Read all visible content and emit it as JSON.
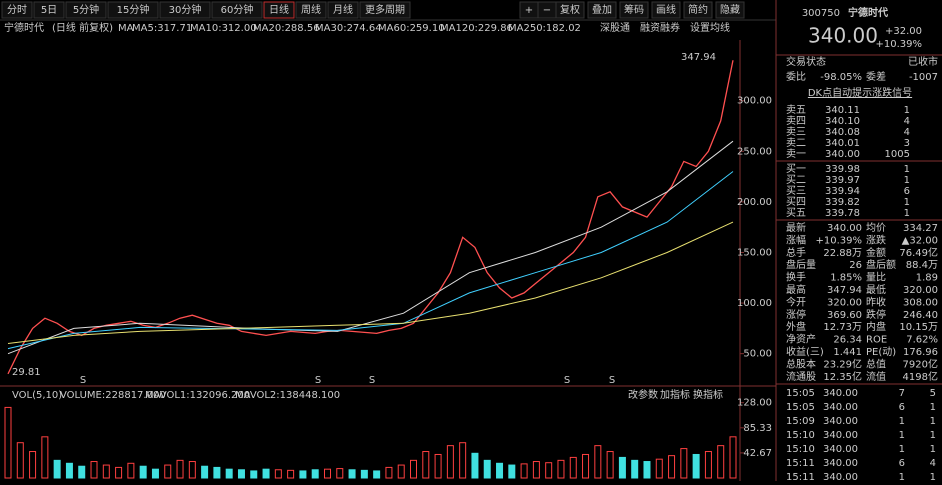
{
  "toolbar": {
    "tabs": [
      "分时",
      "5日",
      "5分钟",
      "15分钟",
      "30分钟",
      "60分钟",
      "日线",
      "周线",
      "月线",
      "更多周期"
    ],
    "active_tab": 6,
    "buttons": [
      "+",
      "−",
      "复权",
      "叠加",
      "筹码",
      "画线",
      "简约",
      "隐藏"
    ]
  },
  "header": {
    "name": "宁德时代",
    "mode": "(日线 前复权)",
    "ma_label": "MA",
    "ma_values": [
      {
        "text": "MA5:317.71",
        "color": "#ffffff"
      },
      {
        "text": "MA10:312.00",
        "color": "#ffff00"
      },
      {
        "text": "MA20:288.56",
        "color": "#ff40ff"
      },
      {
        "text": "MA30:274.64",
        "color": "#40ff40"
      },
      {
        "text": "MA60:259.10",
        "color": "#dddddd"
      },
      {
        "text": "MA120:229.86",
        "color": "#40d0ff"
      },
      {
        "text": "MA250:182.02",
        "color": "#e8e070"
      }
    ],
    "tools": [
      "深股通",
      "融资融券",
      "设置均线"
    ]
  },
  "chart_data": {
    "type": "line",
    "ylim": [
      21,
      360
    ],
    "yticks": [
      {
        "value": 300,
        "label": "300.00"
      },
      {
        "value": 250,
        "label": "250.00"
      },
      {
        "value": 200,
        "label": "200.00"
      },
      {
        "value": 150,
        "label": "150.00"
      },
      {
        "value": 100,
        "label": "100.00"
      },
      {
        "value": 50,
        "label": "50.00"
      }
    ],
    "high_label": "347.94",
    "low_label": "29.81",
    "signal_label": "S",
    "series": [
      {
        "color": "#ff5050",
        "values": [
          30,
          55,
          75,
          85,
          80,
          72,
          68,
          75,
          78,
          80,
          82,
          78,
          76,
          80,
          85,
          88,
          84,
          80,
          78,
          72,
          70,
          68,
          70,
          72,
          71,
          70,
          72,
          73,
          72,
          71,
          70,
          73,
          75,
          80,
          95,
          110,
          130,
          165,
          155,
          130,
          115,
          105,
          110,
          120,
          130,
          140,
          150,
          165,
          205,
          210,
          195,
          190,
          185,
          200,
          215,
          240,
          235,
          250,
          280,
          340
        ]
      },
      {
        "color": "#dddddd",
        "values": [
          50,
          75,
          80,
          77,
          74,
          72,
          90,
          130,
          150,
          175,
          210,
          260
        ]
      },
      {
        "color": "#40d0ff",
        "values": [
          55,
          70,
          76,
          75,
          74,
          73,
          80,
          110,
          130,
          150,
          180,
          230
        ]
      },
      {
        "color": "#e8e070",
        "values": [
          60,
          68,
          72,
          74,
          76,
          78,
          80,
          90,
          105,
          125,
          150,
          180
        ]
      }
    ]
  },
  "volume": {
    "title": "VOL(5,10)",
    "volume": "VOLUME:228817.000",
    "mavol1": "MAVOL1:132096.200",
    "mavol2": "MAVOL2:138448.100",
    "buttons": [
      "改参数",
      "加指标",
      "换指标"
    ],
    "ylim": [
      0,
      136
    ],
    "yticks": [
      {
        "value": 128,
        "label": "128.00"
      },
      {
        "value": 85.33,
        "label": "85.33"
      },
      {
        "value": 42.67,
        "label": "42.67"
      }
    ],
    "values": [
      120,
      60,
      45,
      70,
      30,
      25,
      20,
      28,
      22,
      18,
      25,
      20,
      15,
      22,
      30,
      28,
      20,
      18,
      15,
      14,
      12,
      15,
      14,
      13,
      12,
      14,
      15,
      16,
      14,
      13,
      12,
      18,
      22,
      30,
      45,
      40,
      55,
      60,
      42,
      30,
      25,
      22,
      24,
      28,
      26,
      30,
      35,
      40,
      55,
      45,
      35,
      30,
      28,
      32,
      38,
      50,
      40,
      45,
      55,
      70
    ]
  },
  "quote": {
    "code": "300750",
    "name": "宁德时代",
    "price": "340.00",
    "change": "+32.00",
    "change_pct": "+10.39%",
    "status_label": "交易状态",
    "status": "已收市",
    "ratio_label": "委比",
    "ratio": "-98.05%",
    "diff_label": "委差",
    "diff": "-1007",
    "signal": "DK点自动提示涨跌信号",
    "sells": [
      [
        "卖五",
        "340.11",
        "1"
      ],
      [
        "卖四",
        "340.10",
        "4"
      ],
      [
        "卖三",
        "340.08",
        "4"
      ],
      [
        "卖二",
        "340.01",
        "3"
      ],
      [
        "卖一",
        "340.00",
        "1005"
      ]
    ],
    "buys": [
      [
        "买一",
        "339.98",
        "1"
      ],
      [
        "买二",
        "339.97",
        "1"
      ],
      [
        "买三",
        "339.94",
        "6"
      ],
      [
        "买四",
        "339.82",
        "1"
      ],
      [
        "买五",
        "339.78",
        "1"
      ]
    ],
    "stats": [
      [
        "最新",
        "340.00",
        "均价",
        "334.27"
      ],
      [
        "涨幅",
        "+10.39%",
        "涨跌",
        "▲32.00"
      ],
      [
        "总手",
        "22.88万",
        "金额",
        "76.49亿"
      ],
      [
        "盘后量",
        "26",
        "盘后额",
        "88.4万"
      ],
      [
        "换手",
        "1.85%",
        "量比",
        "1.89"
      ],
      [
        "最高",
        "347.94",
        "最低",
        "320.00"
      ],
      [
        "今开",
        "320.00",
        "昨收",
        "308.00"
      ],
      [
        "涨停",
        "369.60",
        "跌停",
        "246.40"
      ],
      [
        "外盘",
        "12.73万",
        "内盘",
        "10.15万"
      ],
      [
        "净资产",
        "26.34",
        "ROE",
        "7.62%"
      ],
      [
        "收益(三)",
        "1.441",
        "PE(动)",
        "176.96"
      ],
      [
        "总股本",
        "23.29亿",
        "总值",
        "7920亿"
      ],
      [
        "流通股",
        "12.35亿",
        "流值",
        "4198亿"
      ]
    ],
    "value_colors": [
      [
        "#ff4040",
        "#ff4040"
      ],
      [
        "#ff4040",
        "#ff4040"
      ],
      [
        "#ffff40",
        "#40e0ff"
      ],
      [
        "#ffffff",
        "#40e0ff"
      ],
      [
        "#ffffff",
        "#ffff40"
      ],
      [
        "#ff4040",
        "#ff4040"
      ],
      [
        "#ff4040",
        "#ffffff"
      ],
      [
        "#ff4040",
        "#40ff40"
      ],
      [
        "#ff4040",
        "#40ff40"
      ],
      [
        "#ffffff",
        "#ffffff"
      ],
      [
        "#ffffff",
        "#ffffff"
      ],
      [
        "#ffffff",
        "#ffffff"
      ],
      [
        "#ffffff",
        "#ffffff"
      ]
    ],
    "trades": [
      [
        "15:05",
        "340.00",
        "7",
        "5"
      ],
      [
        "15:05",
        "340.00",
        "6",
        "1"
      ],
      [
        "15:09",
        "340.00",
        "1",
        "1"
      ],
      [
        "15:10",
        "340.00",
        "1",
        "1"
      ],
      [
        "15:10",
        "340.00",
        "1",
        "1"
      ],
      [
        "15:11",
        "340.00",
        "6",
        "4"
      ],
      [
        "15:11",
        "340.00",
        "1",
        "1"
      ]
    ]
  }
}
